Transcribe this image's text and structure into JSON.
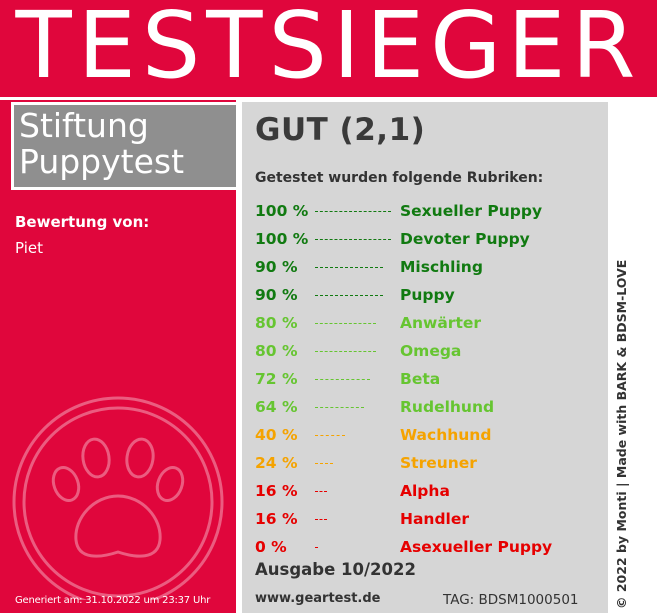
{
  "header": {
    "title": "TESTSIEGER"
  },
  "brand": {
    "line1": "Stiftung",
    "line2": "Puppytest"
  },
  "review": {
    "label": "Bewertung von:",
    "reviewer": "Piet"
  },
  "generated": "Generiert am: 31.10.2022 um 23:37 Uhr",
  "result": {
    "grade": "GUT (2,1)",
    "categories_heading": "Getestet wurden folgende Rubriken:"
  },
  "ratings": [
    {
      "percent_label": "100 %",
      "percent": 100,
      "name": "Sexueller Puppy",
      "color": "#117a11"
    },
    {
      "percent_label": "100 %",
      "percent": 100,
      "name": "Devoter Puppy",
      "color": "#117a11"
    },
    {
      "percent_label": "90 %",
      "percent": 90,
      "name": "Mischling",
      "color": "#117a11"
    },
    {
      "percent_label": "90 %",
      "percent": 90,
      "name": "Puppy",
      "color": "#117a11"
    },
    {
      "percent_label": "80 %",
      "percent": 80,
      "name": "Anwärter",
      "color": "#66c531"
    },
    {
      "percent_label": "80 %",
      "percent": 80,
      "name": "Omega",
      "color": "#66c531"
    },
    {
      "percent_label": "72 %",
      "percent": 72,
      "name": "Beta",
      "color": "#66c531"
    },
    {
      "percent_label": "64 %",
      "percent": 64,
      "name": "Rudelhund",
      "color": "#66c531"
    },
    {
      "percent_label": "40 %",
      "percent": 40,
      "name": "Wachhund",
      "color": "#f5a300"
    },
    {
      "percent_label": "24 %",
      "percent": 24,
      "name": "Streuner",
      "color": "#f5a300"
    },
    {
      "percent_label": "16 %",
      "percent": 16,
      "name": "Alpha",
      "color": "#e60000"
    },
    {
      "percent_label": "16 %",
      "percent": 16,
      "name": "Handler",
      "color": "#e60000"
    },
    {
      "percent_label": "0 %",
      "percent": 0,
      "name": "Asexueller Puppy",
      "color": "#e60000"
    }
  ],
  "footer": {
    "issue": "Ausgabe 10/2022",
    "website": "www.geartest.de",
    "tag": "TAG: BDSM1000501"
  },
  "credit": "© 2022 by Monti | Made with BARK & BDSM-LOVE",
  "colors": {
    "brand_red": "#e0063c",
    "panel_gray": "#d6d6d6",
    "brand_box_gray": "#8f8f8f"
  },
  "icons": {
    "paw": "paw-icon"
  }
}
